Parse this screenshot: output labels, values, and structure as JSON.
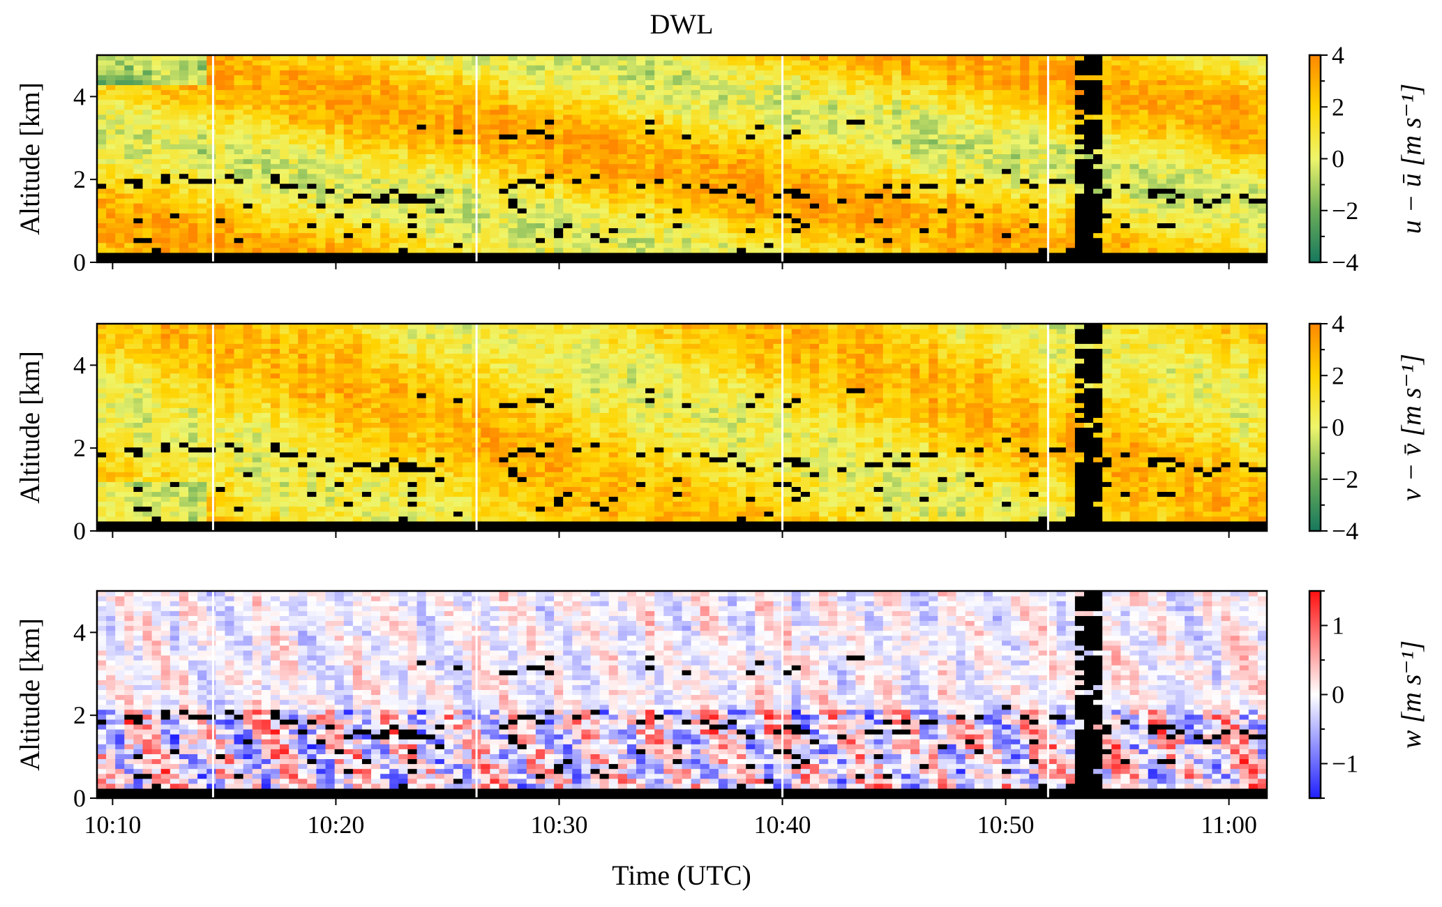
{
  "chart_data": {
    "type": "heatmap",
    "title": "DWL",
    "xlabel": "Time (UTC)",
    "x_tick_labels": [
      "10:10",
      "10:20",
      "10:30",
      "10:40",
      "10:50",
      "11:00"
    ],
    "x_ticks_minutes_after_10": [
      10,
      20,
      30,
      40,
      50,
      60
    ],
    "xlim_minutes_after_10": [
      9.3,
      61.7
    ],
    "scan_break_lines_minutes_after_10": [
      14.5,
      26.3,
      40.0,
      51.9
    ],
    "panels": [
      {
        "name": "u-anomaly",
        "ylabel": "Altitude [km]",
        "ylim": [
          0,
          5
        ],
        "y_tick_labels": [
          "0",
          "2",
          "4"
        ],
        "y_ticks": [
          0,
          2,
          4
        ],
        "colorbar_label": "u − ū [m s⁻¹]",
        "colorbar_range": [
          -4,
          4
        ],
        "colorbar_tick_labels": [
          "4",
          "2",
          "0",
          "−2",
          "−4"
        ],
        "colorbar_ticks": [
          4,
          2,
          0,
          -2,
          -4
        ],
        "colormap": [
          "#16785c",
          "#6cae5a",
          "#eef56c",
          "#ffd400",
          "#ff8800"
        ],
        "missing_color": "#000000"
      },
      {
        "name": "v-anomaly",
        "ylabel": "Altitude [km]",
        "ylim": [
          0,
          5
        ],
        "y_tick_labels": [
          "0",
          "2",
          "4"
        ],
        "y_ticks": [
          0,
          2,
          4
        ],
        "colorbar_label": "v − v̄ [m s⁻¹]",
        "colorbar_range": [
          -4,
          4
        ],
        "colorbar_tick_labels": [
          "4",
          "2",
          "0",
          "−2",
          "−4"
        ],
        "colorbar_ticks": [
          4,
          2,
          0,
          -2,
          -4
        ],
        "colormap": [
          "#16785c",
          "#6cae5a",
          "#eef56c",
          "#ffd400",
          "#ff8800"
        ],
        "missing_color": "#000000"
      },
      {
        "name": "w",
        "ylabel": "Altitude [km]",
        "ylim": [
          0,
          5
        ],
        "y_tick_labels": [
          "0",
          "2",
          "4"
        ],
        "y_ticks": [
          0,
          2,
          4
        ],
        "colorbar_label": "w [m s⁻¹]",
        "colorbar_range": [
          -1.5,
          1.5
        ],
        "colorbar_tick_labels": [
          "1",
          "0",
          "−1"
        ],
        "colorbar_ticks": [
          1,
          0,
          -1
        ],
        "colormap": [
          "#2020ff",
          "#ffffff",
          "#ff1010"
        ],
        "missing_color": "#000000"
      }
    ]
  }
}
